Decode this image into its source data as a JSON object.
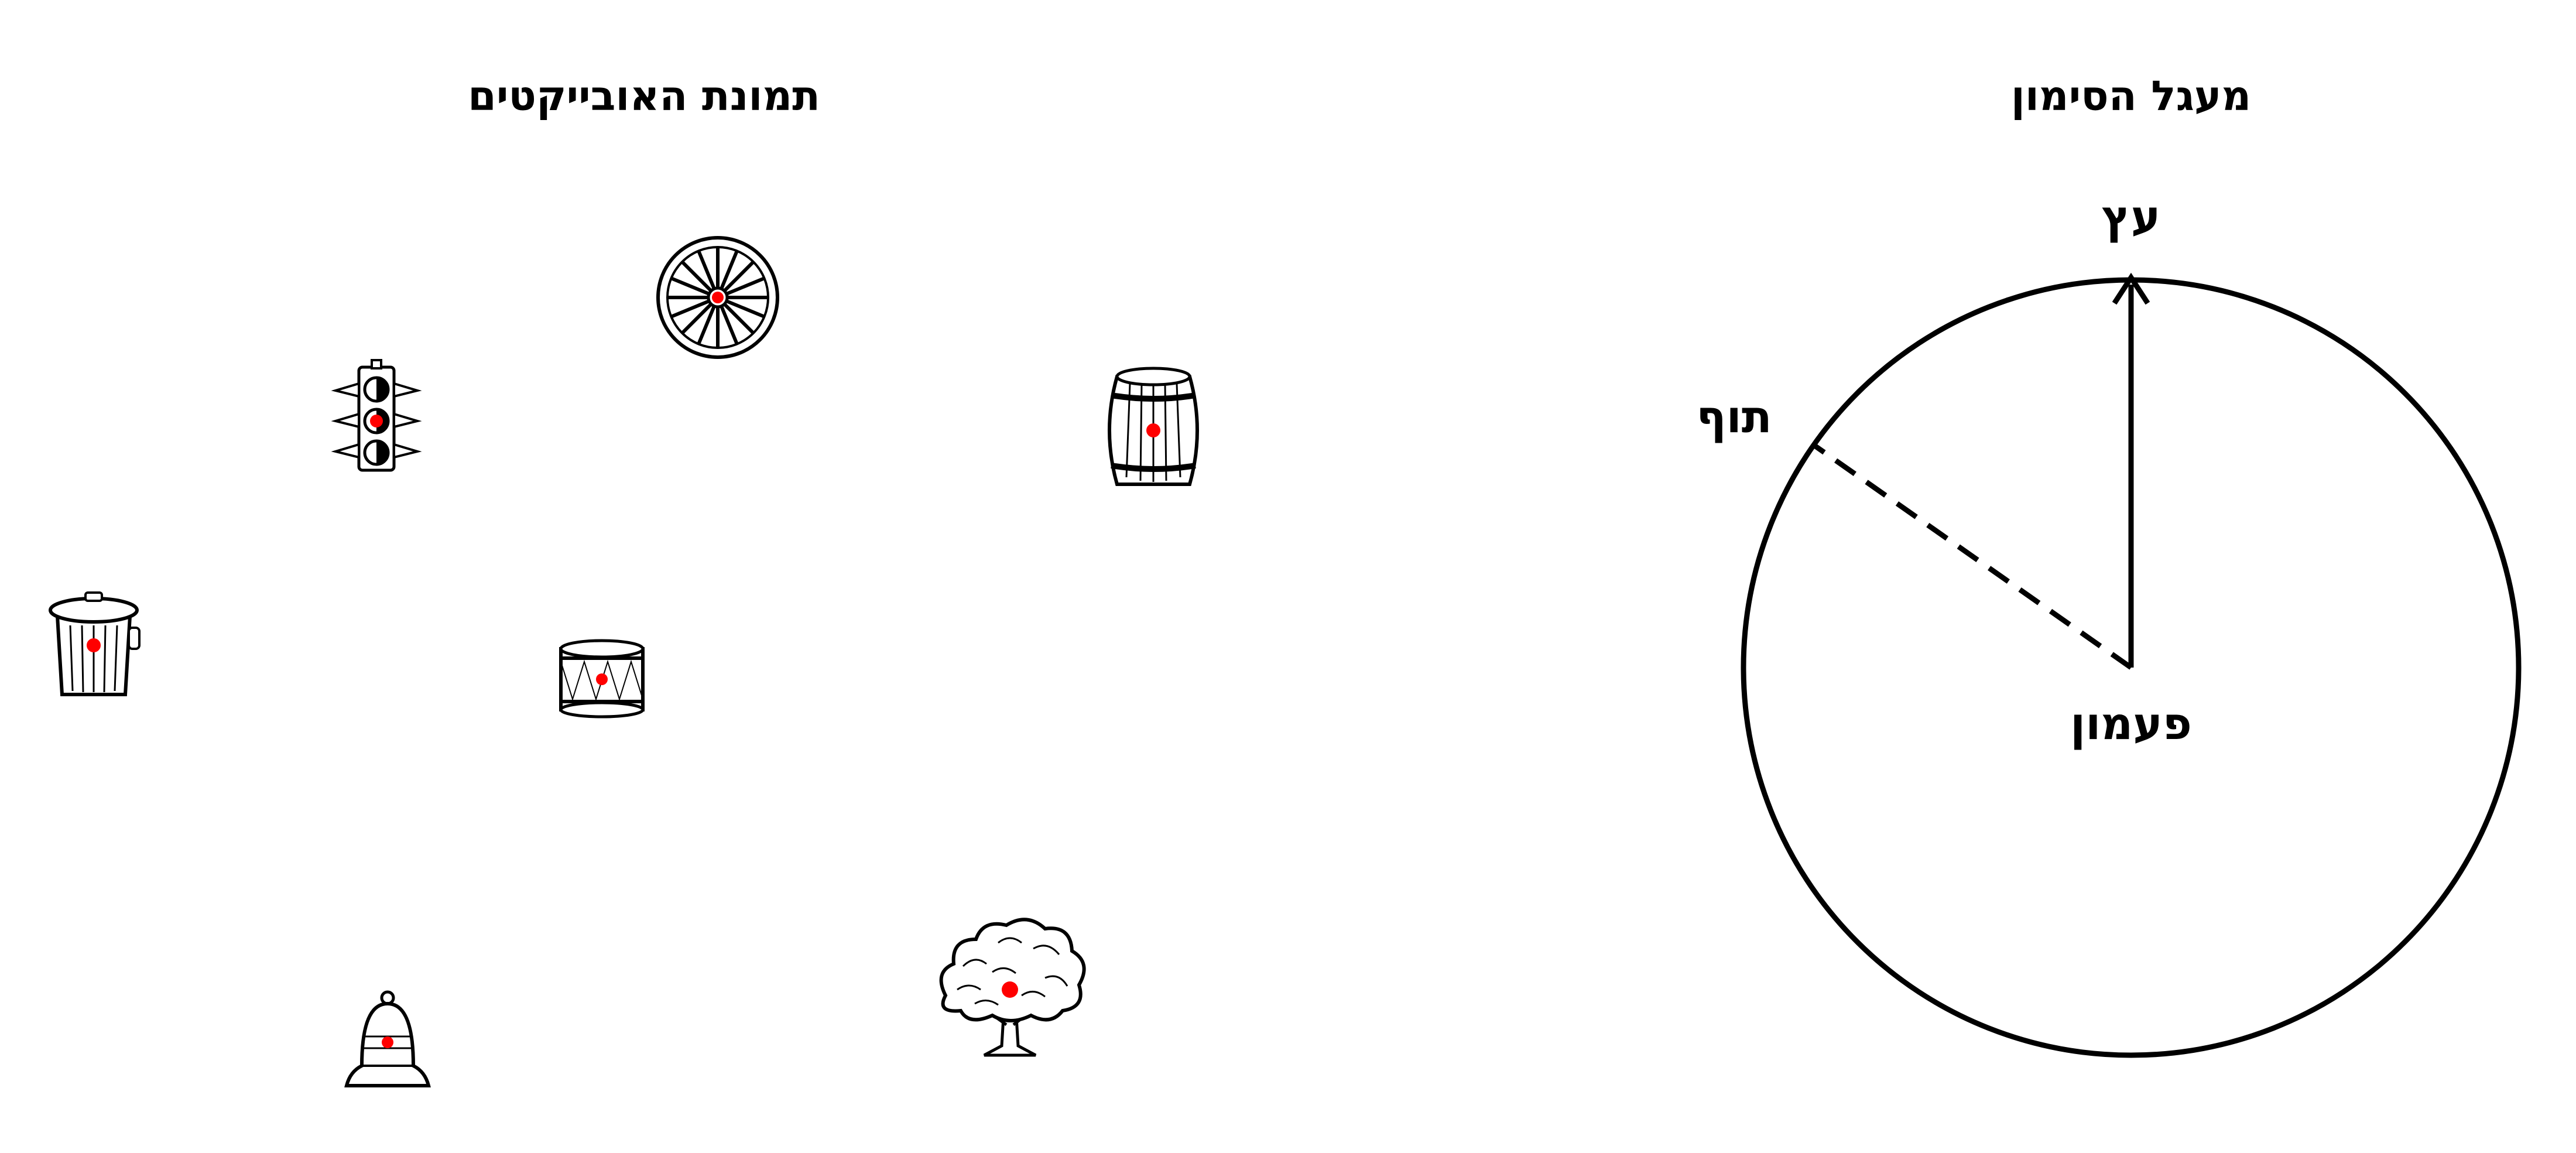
{
  "left_panel": {
    "title": "תמונת האובייקטים",
    "objects": [
      {
        "name": "wheel",
        "icon": "wagon-wheel-icon"
      },
      {
        "name": "traffic-light",
        "icon": "traffic-light-icon"
      },
      {
        "name": "barrel",
        "icon": "barrel-icon"
      },
      {
        "name": "trash-can",
        "icon": "trash-can-icon"
      },
      {
        "name": "drum",
        "icon": "drum-icon"
      },
      {
        "name": "tree",
        "icon": "tree-icon"
      },
      {
        "name": "bell",
        "icon": "bell-icon"
      }
    ],
    "marker_color": "#ff0000"
  },
  "right_panel": {
    "title": "מעגל הסימון",
    "center_label": "פעמון",
    "reference_label": "עץ",
    "answer_label": "תוף",
    "line_color": "#000000"
  }
}
